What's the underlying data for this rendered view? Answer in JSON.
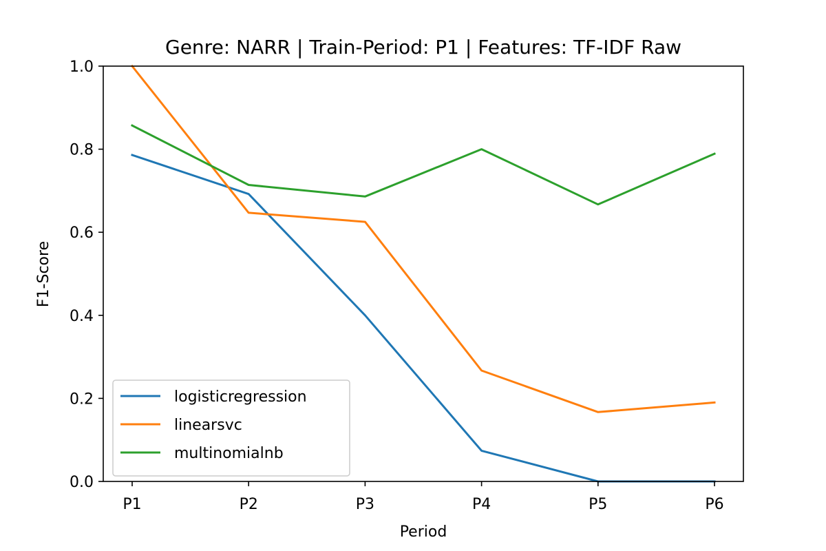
{
  "chart_data": {
    "type": "line",
    "title": "Genre: NARR | Train-Period: P1 | Features: TF-IDF Raw",
    "xlabel": "Period",
    "ylabel": "F1-Score",
    "categories": [
      "P1",
      "P2",
      "P3",
      "P4",
      "P5",
      "P6"
    ],
    "ylim": [
      0.0,
      1.0
    ],
    "yticks": [
      "0.0",
      "0.2",
      "0.4",
      "0.6",
      "0.8",
      "1.0"
    ],
    "grid": false,
    "legend_position": "lower-left",
    "series": [
      {
        "name": "logisticregression",
        "color": "#1f77b4",
        "values": [
          0.786,
          0.692,
          0.4,
          0.074,
          0.0,
          0.0
        ]
      },
      {
        "name": "linearsvc",
        "color": "#ff7f0e",
        "values": [
          1.0,
          0.647,
          0.625,
          0.267,
          0.167,
          0.19
        ]
      },
      {
        "name": "multinomialnb",
        "color": "#2ca02c",
        "values": [
          0.857,
          0.714,
          0.686,
          0.8,
          0.667,
          0.789
        ]
      }
    ]
  }
}
